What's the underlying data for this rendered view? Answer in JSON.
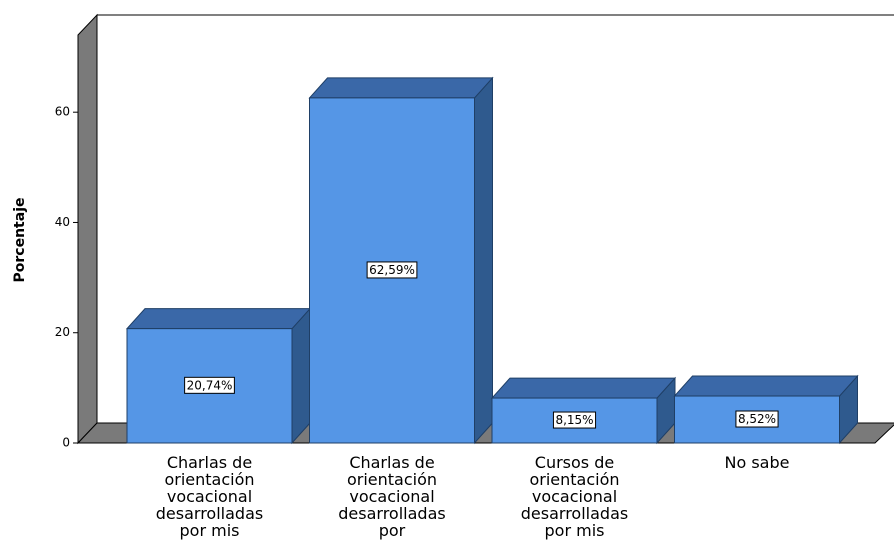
{
  "chart_data": {
    "type": "bar3d",
    "y_label": "Porcentaje",
    "categories": [
      "Charlas de orientación vocacional desarrolladas por mis",
      "Charlas de orientación vocacional desarrolladas por",
      "Cursos de orientación vocacional desarrolladas por mis",
      "No sabe"
    ],
    "values": [
      20.74,
      62.59,
      8.15,
      8.52
    ],
    "value_labels": [
      "20,74%",
      "62,59%",
      "8,15%",
      "8,52%"
    ],
    "color": "#5596e6",
    "ylim": [
      0,
      74
    ],
    "yticks": [
      0,
      20,
      40,
      60
    ]
  }
}
